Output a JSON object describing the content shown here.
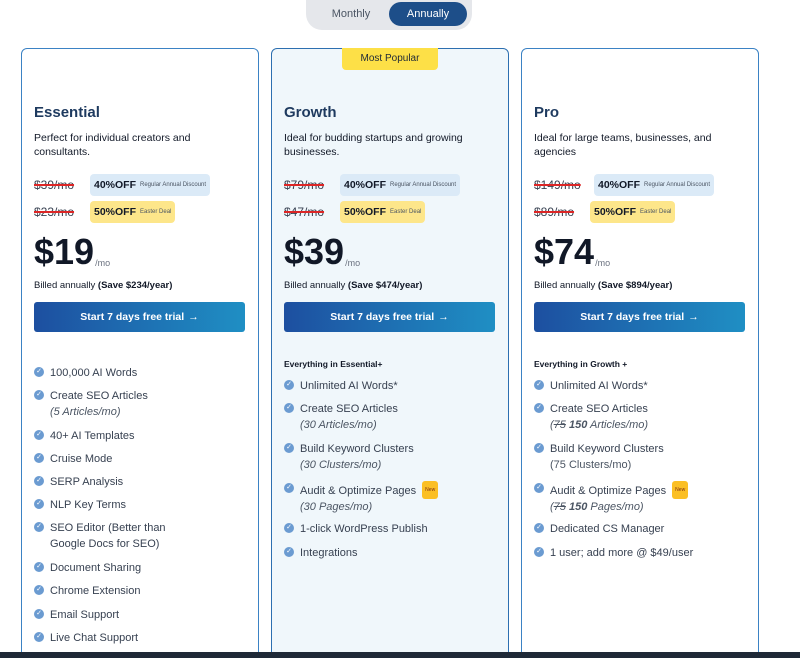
{
  "toggle": {
    "monthly": "Monthly",
    "annually": "Annually"
  },
  "colors": {
    "accent": "#1d4e89",
    "badge": "#fde047",
    "cta_start": "#1d4fa0",
    "cta_end": "#1f8fc4",
    "check": "#6b9bd1"
  },
  "plans": [
    {
      "name": "Essential",
      "desc": "Perfect for individual creators and consultants.",
      "orig_price": "$39/mo",
      "discount1": "40%OFF",
      "discount1_label": "Regular Annual Discount",
      "orig_price2": "$23/mo",
      "discount2": "50%OFF",
      "discount2_label": "Easter Deal",
      "price": "$19",
      "per": "/mo",
      "billed": "Billed annually",
      "save": "(Save $234/year)",
      "cta": "Start 7 days free trial",
      "cta_arrow": "→",
      "features": [
        {
          "text": "100,000 AI Words"
        },
        {
          "text": "Create SEO Articles",
          "sub": "(5 Articles/mo)"
        },
        {
          "text": "40+ AI Templates"
        },
        {
          "text": "Cruise Mode"
        },
        {
          "text": "SERP Analysis"
        },
        {
          "text": "NLP Key Terms"
        },
        {
          "text": "SEO Editor (Better than Google Docs for SEO)"
        },
        {
          "text": "Document Sharing"
        },
        {
          "text": "Chrome Extension"
        },
        {
          "text": "Email Support"
        },
        {
          "text": "Live Chat Support"
        }
      ]
    },
    {
      "name": "Growth",
      "badge": "Most Popular",
      "desc": "Ideal for budding startups and growing businesses.",
      "orig_price": "$79/mo",
      "discount1": "40%OFF",
      "discount1_label": "Regular Annual Discount",
      "orig_price2": "$47/mo",
      "discount2": "50%OFF",
      "discount2_label": "Easter Deal",
      "price": "$39",
      "per": "/mo",
      "billed": "Billed annually",
      "save": "(Save $474/year)",
      "cta": "Start 7 days free trial",
      "cta_arrow": "→",
      "everything": "Everything in Essential+",
      "features": [
        {
          "text": "Unlimited AI Words*"
        },
        {
          "text": "Create SEO Articles",
          "sub": "(30 Articles/mo)"
        },
        {
          "text": "Build Keyword Clusters",
          "sub": "(30 Clusters/mo)"
        },
        {
          "text": "Audit & Optimize Pages",
          "new": "New",
          "sub": "(30 Pages/mo)"
        },
        {
          "text": "1-click WordPress Publish"
        },
        {
          "text": "Integrations"
        }
      ]
    },
    {
      "name": "Pro",
      "desc": "Ideal for large teams, businesses, and agencies",
      "orig_price": "$149/mo",
      "discount1": "40%OFF",
      "discount1_label": "Regular Annual Discount",
      "orig_price2": "$89/mo",
      "discount2": "50%OFF",
      "discount2_label": "Easter Deal",
      "price": "$74",
      "per": "/mo",
      "billed": "Billed annually",
      "save": "(Save $894/year)",
      "cta": "Start 7 days free trial",
      "cta_arrow": "→",
      "everything": "Everything in Growth +",
      "features": [
        {
          "text": "Unlimited AI Words*"
        },
        {
          "text": "Create SEO Articles",
          "sub_open": "(",
          "sub_old": "75",
          "sub_new": "150",
          "sub_rest": "Articles/mo)"
        },
        {
          "text": "Build Keyword Clusters",
          "sub": "(75 Clusters/mo)"
        },
        {
          "text": "Audit & Optimize Pages",
          "new": "New",
          "sub_open": "(",
          "sub_old": "75",
          "sub_new": "150",
          "sub_rest": "Pages/mo)"
        },
        {
          "text": "Dedicated CS Manager"
        },
        {
          "text": "1 user; add more @ $49/user"
        }
      ]
    }
  ]
}
